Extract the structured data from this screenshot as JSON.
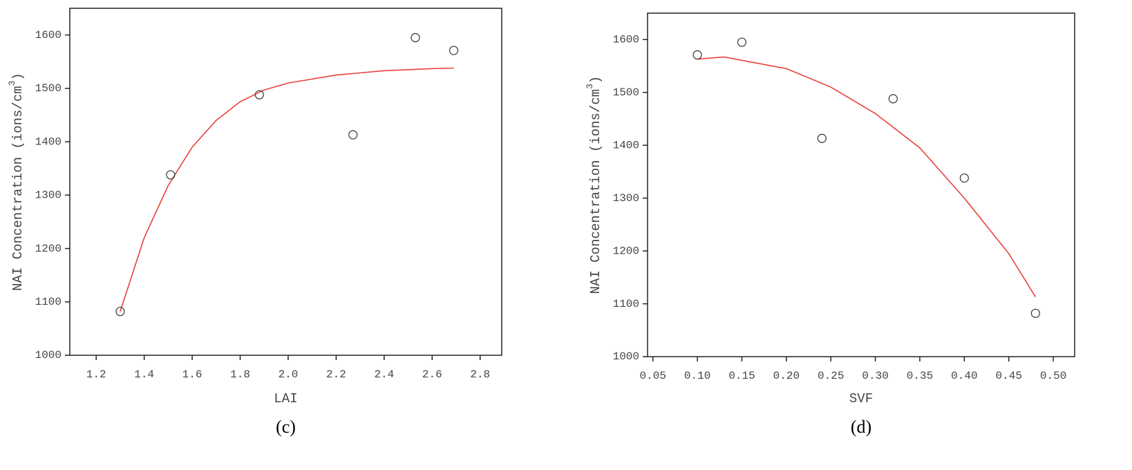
{
  "chart_data": [
    {
      "type": "scatter",
      "caption": "(c)",
      "x_label": "LAI",
      "y_label": "NAI Concentration (ions/cm",
      "y_label_sup": "3",
      "y_label_end": ")",
      "xlim": [
        1.09,
        2.89
      ],
      "xticks": [
        1.2,
        1.4,
        1.6,
        1.8,
        {
          "value": 2.0,
          "label": "2.0"
        },
        2.2,
        2.4,
        2.6,
        2.8
      ],
      "ylim": [
        1000,
        1650
      ],
      "yticks": [
        1000,
        1100,
        1200,
        1300,
        1400,
        1500,
        1600
      ],
      "x": [
        1.3,
        1.51,
        1.88,
        2.27,
        2.53,
        2.69
      ],
      "values": [
        1082,
        1338,
        1488,
        1413,
        1595,
        1571
      ],
      "color": "#333333",
      "fit": {
        "color": "#e8413a",
        "x": [
          1.3,
          1.4,
          1.5,
          1.6,
          1.7,
          1.8,
          1.9,
          2.0,
          2.2,
          2.4,
          2.6,
          2.69
        ],
        "values": [
          1082,
          1220,
          1318,
          1390,
          1440,
          1475,
          1497,
          1510,
          1525,
          1533,
          1537,
          1538
        ]
      }
    },
    {
      "type": "scatter",
      "caption": "(d)",
      "x_label": "SVF",
      "y_label": "NAI Concentration (ions/cm",
      "y_label_sup": "3",
      "y_label_end": ")",
      "xlim": [
        0.044,
        0.524
      ],
      "xticks": [
        0.05,
        {
          "value": 0.1,
          "label": "0.10"
        },
        0.15,
        {
          "value": 0.2,
          "label": "0.20"
        },
        0.25,
        {
          "value": 0.3,
          "label": "0.30"
        },
        0.35,
        {
          "value": 0.4,
          "label": "0.40"
        },
        0.45,
        {
          "value": 0.5,
          "label": "0.50"
        }
      ],
      "ylim": [
        1000,
        1650
      ],
      "yticks": [
        1000,
        1100,
        1200,
        1300,
        1400,
        1500,
        1600
      ],
      "x": [
        0.1,
        0.15,
        0.24,
        0.32,
        0.4,
        0.48
      ],
      "values": [
        1571,
        1595,
        1413,
        1488,
        1338,
        1082
      ],
      "color": "#333333",
      "fit": {
        "color": "#e8413a",
        "x": [
          0.1,
          0.13,
          0.2,
          0.25,
          0.3,
          0.35,
          0.4,
          0.45,
          0.48
        ],
        "values": [
          1563,
          1567,
          1545,
          1510,
          1460,
          1395,
          1300,
          1195,
          1113
        ]
      }
    }
  ]
}
